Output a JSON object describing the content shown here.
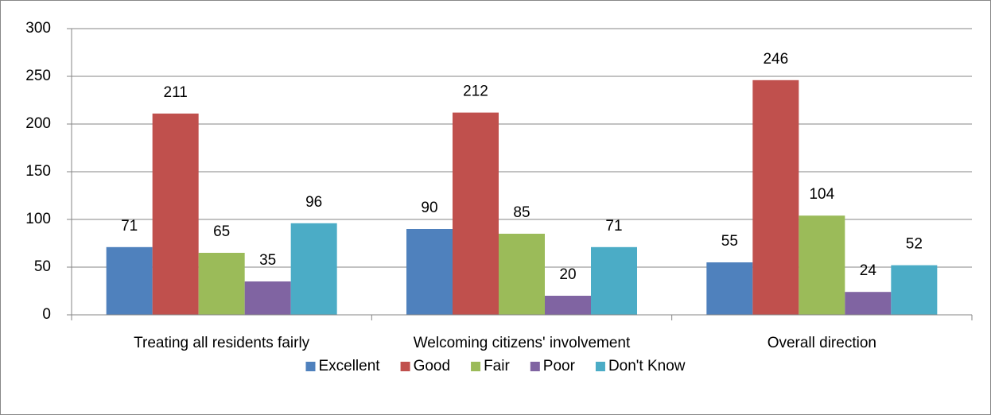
{
  "chart_data": {
    "type": "bar",
    "categories": [
      "Treating all residents fairly",
      "Welcoming citizens' involvement",
      "Overall direction"
    ],
    "series": [
      {
        "name": "Excellent",
        "color": "#4f81bd",
        "values": [
          71,
          90,
          55
        ]
      },
      {
        "name": "Good",
        "color": "#c0504d",
        "values": [
          211,
          212,
          246
        ]
      },
      {
        "name": "Fair",
        "color": "#9bbb59",
        "values": [
          65,
          85,
          104
        ]
      },
      {
        "name": "Poor",
        "color": "#8064a2",
        "values": [
          35,
          20,
          24
        ]
      },
      {
        "name": "Don't Know",
        "color": "#4bacc6",
        "values": [
          96,
          71,
          52
        ]
      }
    ],
    "ylim": [
      0,
      300
    ],
    "yticks": [
      0,
      50,
      100,
      150,
      200,
      250,
      300
    ],
    "grid": true,
    "legend": "bottom"
  }
}
